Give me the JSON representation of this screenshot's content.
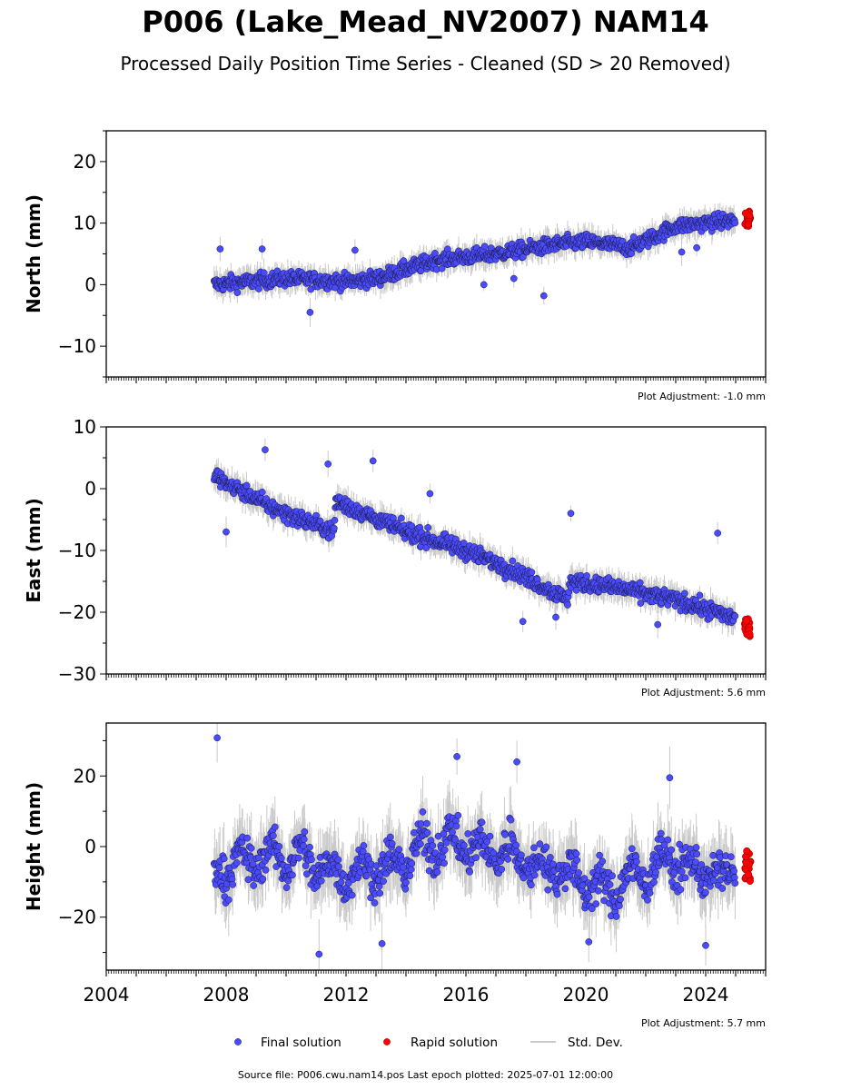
{
  "title": "P006 (Lake_Mead_NV2007) NAM14",
  "subtitle": "Processed Daily Position Time Series - Cleaned (SD > 20 Removed)",
  "source": "Source file: P006.cwu.nam14.pos  Last epoch plotted: 2025-07-01 12:00:00",
  "colors": {
    "final": "#4a4aff",
    "final_edge": "#1a1a3a",
    "rapid": "#ff0000",
    "rapid_edge": "#7a0000",
    "stddev": "#b8b8b8"
  },
  "legend": {
    "placement": "bottom-center",
    "final": "Final solution",
    "rapid": "Rapid solution",
    "stddev": "Std. Dev."
  },
  "chart_data": [
    {
      "type": "scatter",
      "name": "north",
      "ylabel": "North (mm)",
      "xlim": [
        2004,
        2026
      ],
      "ylim": [
        -15,
        25
      ],
      "yticks": [
        -10,
        0,
        10,
        20
      ],
      "adjustment": "Plot Adjustment: -1.0 mm",
      "show_x_tick_labels": false,
      "final_trend": {
        "x": [
          2007.6,
          2010.0,
          2012.0,
          2013.0,
          2015.0,
          2017.0,
          2019.0,
          2020.0,
          2021.5,
          2023.0,
          2025.0
        ],
        "y": [
          0.0,
          1.0,
          0.5,
          1.0,
          4.0,
          5.0,
          6.5,
          7.0,
          6.0,
          9.5,
          10.5
        ]
      },
      "final_spread": 1.6,
      "final_outliers": {
        "x": [
          2007.8,
          2009.2,
          2010.8,
          2012.3,
          2016.6,
          2017.6,
          2018.6,
          2023.2,
          2023.7
        ],
        "y": [
          5.8,
          5.8,
          -4.5,
          5.6,
          0.0,
          1.0,
          -1.8,
          5.3,
          6.0
        ]
      },
      "rapid": {
        "x_range": [
          2025.3,
          2025.5
        ],
        "y_range": [
          9.5,
          12.0
        ]
      }
    },
    {
      "type": "scatter",
      "name": "east",
      "ylabel": "East (mm)",
      "xlim": [
        2004,
        2026
      ],
      "ylim": [
        -30,
        10
      ],
      "yticks": [
        -30,
        -20,
        -10,
        0,
        10
      ],
      "adjustment": "Plot Adjustment: 5.6 mm",
      "show_x_tick_labels": false,
      "final_trend": {
        "x": [
          2007.6,
          2009.5,
          2011.6,
          2011.65,
          2014.0,
          2016.0,
          2017.5,
          2019.4,
          2019.45,
          2021.0,
          2023.0,
          2025.0
        ],
        "y": [
          2.0,
          -3.0,
          -7.0,
          -2.0,
          -7.0,
          -10.0,
          -13.0,
          -18.0,
          -15.0,
          -16.0,
          -18.0,
          -21.0
        ]
      },
      "final_spread": 1.7,
      "final_outliers": {
        "x": [
          2009.3,
          2011.4,
          2012.9,
          2014.8,
          2019.5,
          2024.4,
          2008.0,
          2019.0,
          2022.4,
          2017.9
        ],
        "y": [
          6.3,
          4.0,
          4.5,
          -0.8,
          -4.0,
          -7.2,
          -7.0,
          -20.8,
          -22.0,
          -21.5
        ]
      },
      "rapid": {
        "x_range": [
          2025.3,
          2025.5
        ],
        "y_range": [
          -24.0,
          -21.0
        ]
      }
    },
    {
      "type": "scatter",
      "name": "height",
      "ylabel": "Height (mm)",
      "xlim": [
        2004,
        2026
      ],
      "ylim": [
        -35,
        35
      ],
      "yticks": [
        -20,
        0,
        20
      ],
      "xticks": [
        2004,
        2008,
        2012,
        2016,
        2020,
        2024
      ],
      "adjustment": "Plot Adjustment: 5.7 mm",
      "show_x_tick_labels": true,
      "final_trend": {
        "x": [
          2007.6,
          2008.0,
          2008.5,
          2009.0,
          2009.5,
          2010.0,
          2010.5,
          2011.0,
          2011.5,
          2012.0,
          2012.5,
          2013.0,
          2013.5,
          2014.0,
          2014.5,
          2015.0,
          2015.5,
          2016.0,
          2016.5,
          2017.0,
          2017.5,
          2018.0,
          2018.5,
          2019.0,
          2019.5,
          2020.0,
          2020.5,
          2021.0,
          2021.5,
          2022.0,
          2022.5,
          2023.0,
          2023.5,
          2024.0,
          2024.5,
          2025.0
        ],
        "y": [
          -5,
          -10,
          0,
          -8,
          2,
          -8,
          2,
          -10,
          -3,
          -12,
          -3,
          -10,
          -2,
          -8,
          4,
          -4,
          6,
          -4,
          3,
          -6,
          3,
          -8,
          -2,
          -10,
          -4,
          -14,
          -8,
          -16,
          -4,
          -12,
          0,
          -8,
          -3,
          -10,
          -6,
          -8
        ]
      },
      "final_spread": 7.0,
      "final_outliers": {
        "x": [
          2007.7,
          2011.1,
          2013.2,
          2015.7,
          2017.7,
          2020.1,
          2022.8,
          2024.0
        ],
        "y": [
          30.8,
          -30.5,
          -27.5,
          25.5,
          24.0,
          -27.0,
          19.5,
          -28.0
        ]
      },
      "rapid": {
        "x_range": [
          2025.3,
          2025.5
        ],
        "y_range": [
          -10.0,
          -1.0
        ]
      }
    }
  ]
}
